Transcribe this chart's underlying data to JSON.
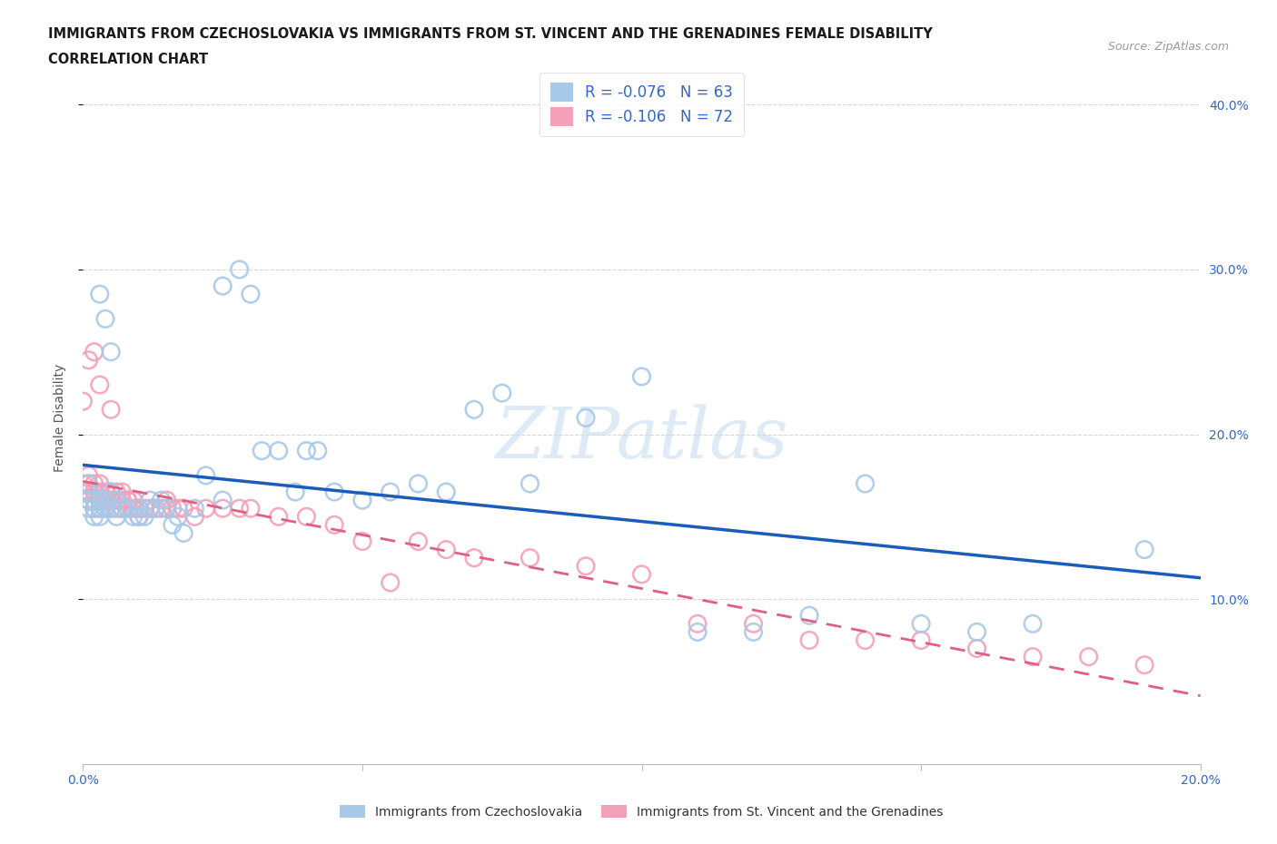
{
  "title_line1": "IMMIGRANTS FROM CZECHOSLOVAKIA VS IMMIGRANTS FROM ST. VINCENT AND THE GRENADINES FEMALE DISABILITY",
  "title_line2": "CORRELATION CHART",
  "source_text": "Source: ZipAtlas.com",
  "ylabel": "Female Disability",
  "watermark": "ZIPatlas",
  "xlim": [
    0.0,
    0.2
  ],
  "ylim": [
    0.0,
    0.42
  ],
  "xtick_labels": [
    "0.0%",
    "",
    "",
    "",
    "20.0%"
  ],
  "xtick_vals": [
    0.0,
    0.05,
    0.1,
    0.15,
    0.2
  ],
  "ytick_labels": [
    "10.0%",
    "20.0%",
    "30.0%",
    "40.0%"
  ],
  "ytick_vals": [
    0.1,
    0.2,
    0.3,
    0.4
  ],
  "series1_color": "#a8c8e8",
  "series2_color": "#f4a0b8",
  "line1_color": "#1a5cb8",
  "line2_color": "#e06080",
  "legend1_label": "Immigrants from Czechoslovakia",
  "legend2_label": "Immigrants from St. Vincent and the Grenadines",
  "R1": -0.076,
  "N1": 63,
  "R2": -0.106,
  "N2": 72,
  "series1_x": [
    0.001,
    0.001,
    0.001,
    0.001,
    0.002,
    0.002,
    0.002,
    0.003,
    0.003,
    0.003,
    0.004,
    0.004,
    0.005,
    0.005,
    0.006,
    0.006,
    0.007,
    0.008,
    0.009,
    0.01,
    0.01,
    0.011,
    0.012,
    0.013,
    0.014,
    0.015,
    0.016,
    0.017,
    0.018,
    0.02,
    0.022,
    0.025,
    0.025,
    0.028,
    0.03,
    0.032,
    0.035,
    0.038,
    0.04,
    0.042,
    0.045,
    0.05,
    0.055,
    0.06,
    0.065,
    0.07,
    0.075,
    0.08,
    0.09,
    0.1,
    0.11,
    0.12,
    0.13,
    0.14,
    0.15,
    0.16,
    0.17,
    0.003,
    0.004,
    0.005,
    0.007,
    0.012,
    0.19
  ],
  "series1_y": [
    0.155,
    0.16,
    0.165,
    0.17,
    0.15,
    0.155,
    0.16,
    0.15,
    0.155,
    0.16,
    0.155,
    0.16,
    0.155,
    0.165,
    0.15,
    0.16,
    0.155,
    0.155,
    0.15,
    0.15,
    0.155,
    0.15,
    0.16,
    0.155,
    0.16,
    0.155,
    0.145,
    0.15,
    0.14,
    0.155,
    0.175,
    0.16,
    0.29,
    0.3,
    0.285,
    0.19,
    0.19,
    0.165,
    0.19,
    0.19,
    0.165,
    0.16,
    0.165,
    0.17,
    0.165,
    0.215,
    0.225,
    0.17,
    0.21,
    0.235,
    0.08,
    0.08,
    0.09,
    0.17,
    0.085,
    0.08,
    0.085,
    0.285,
    0.27,
    0.25,
    0.155,
    0.155,
    0.13
  ],
  "series2_x": [
    0.0,
    0.0,
    0.001,
    0.001,
    0.001,
    0.001,
    0.002,
    0.002,
    0.002,
    0.002,
    0.003,
    0.003,
    0.003,
    0.003,
    0.004,
    0.004,
    0.004,
    0.005,
    0.005,
    0.005,
    0.006,
    0.006,
    0.006,
    0.007,
    0.007,
    0.007,
    0.008,
    0.008,
    0.009,
    0.009,
    0.01,
    0.01,
    0.011,
    0.012,
    0.013,
    0.014,
    0.015,
    0.015,
    0.016,
    0.017,
    0.018,
    0.02,
    0.022,
    0.025,
    0.028,
    0.03,
    0.035,
    0.04,
    0.045,
    0.05,
    0.055,
    0.06,
    0.065,
    0.07,
    0.08,
    0.09,
    0.1,
    0.11,
    0.12,
    0.13,
    0.14,
    0.15,
    0.16,
    0.17,
    0.18,
    0.0,
    0.001,
    0.002,
    0.003,
    0.005,
    0.008,
    0.19
  ],
  "series2_y": [
    0.165,
    0.17,
    0.16,
    0.165,
    0.17,
    0.175,
    0.155,
    0.16,
    0.165,
    0.17,
    0.155,
    0.16,
    0.165,
    0.17,
    0.155,
    0.16,
    0.165,
    0.155,
    0.16,
    0.165,
    0.155,
    0.16,
    0.165,
    0.155,
    0.16,
    0.165,
    0.155,
    0.16,
    0.155,
    0.16,
    0.15,
    0.155,
    0.155,
    0.155,
    0.155,
    0.155,
    0.155,
    0.16,
    0.155,
    0.155,
    0.155,
    0.15,
    0.155,
    0.155,
    0.155,
    0.155,
    0.15,
    0.15,
    0.145,
    0.135,
    0.11,
    0.135,
    0.13,
    0.125,
    0.125,
    0.12,
    0.115,
    0.085,
    0.085,
    0.075,
    0.075,
    0.075,
    0.07,
    0.065,
    0.065,
    0.22,
    0.245,
    0.25,
    0.23,
    0.215,
    0.16,
    0.06
  ]
}
